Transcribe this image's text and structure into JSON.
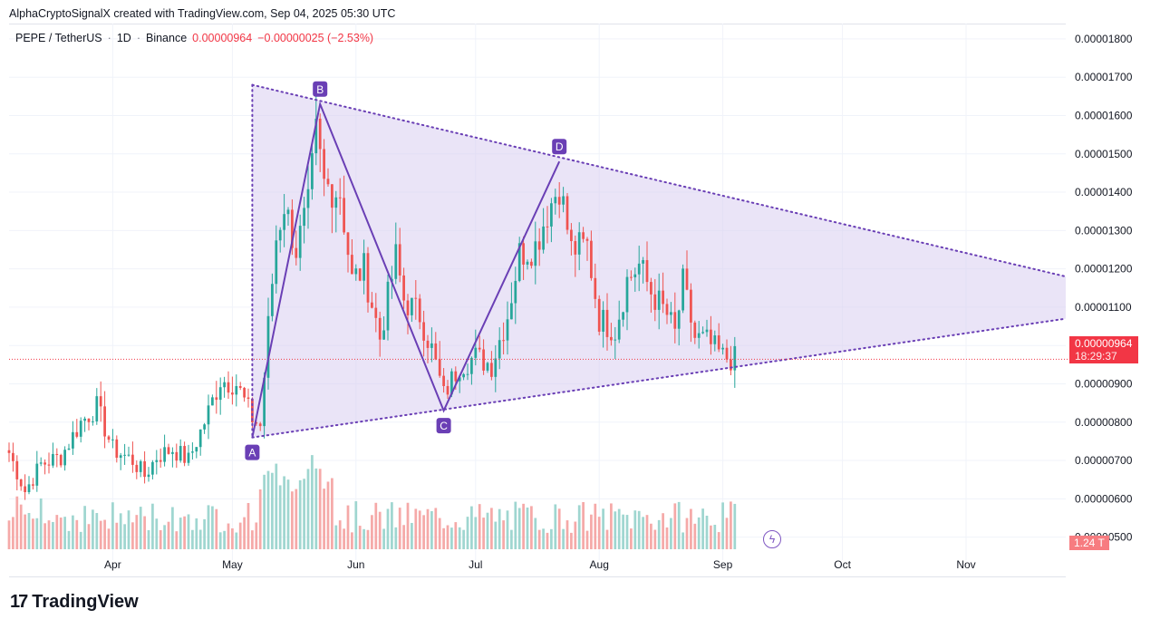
{
  "credit": "AlphaCryptoSignalX created with TradingView.com, Sep 04, 2025 05:30 UTC",
  "legend": {
    "symbol": "PEPE / TetherUS",
    "interval": "1D",
    "exchange": "Binance",
    "price": "0.00000964",
    "change": "−0.00000025 (−2.53%)"
  },
  "current_price": {
    "price": "0.00000964",
    "countdown": "18:29:37"
  },
  "volume_label": "1.24 T",
  "branding": {
    "mark": "17",
    "name": "TradingView"
  },
  "colors": {
    "up": "#26a69a",
    "down": "#ef5350",
    "pattern": "#6a3fb5",
    "fill": "#d9cdf0",
    "accent": "#f23645"
  },
  "chart_data": {
    "type": "candlestick",
    "y_axis_ticks": [
      "0.00001800",
      "0.00001700",
      "0.00001600",
      "0.00001500",
      "0.00001400",
      "0.00001300",
      "0.00001200",
      "0.00001100",
      "0.00001000",
      "0.00000900",
      "0.00000800",
      "0.00000700",
      "0.00000600",
      "0.00000500"
    ],
    "ylim": [
      4.4e-06,
      1.84e-05
    ],
    "x_axis_ticks": [
      "Apr",
      "May",
      "Jun",
      "Jul",
      "Aug",
      "Sep",
      "Oct",
      "Nov"
    ],
    "x_tick_dates": [
      "2025-04-01",
      "2025-05-01",
      "2025-06-01",
      "2025-07-01",
      "2025-08-01",
      "2025-09-01",
      "2025-10-01",
      "2025-11-01"
    ],
    "date_range": [
      "2025-03-06",
      "2025-11-26"
    ],
    "price_path": [
      [
        "2025-03-06",
        7.2e-06
      ],
      [
        "2025-03-10",
        6.2e-06
      ],
      [
        "2025-03-14",
        6.9e-06
      ],
      [
        "2025-03-19",
        7.1e-06
      ],
      [
        "2025-03-24",
        8e-06
      ],
      [
        "2025-03-28",
        8.4e-06
      ],
      [
        "2025-04-01",
        7.3e-06
      ],
      [
        "2025-04-06",
        7e-06
      ],
      [
        "2025-04-09",
        6.6e-06
      ],
      [
        "2025-04-12",
        7.1e-06
      ],
      [
        "2025-04-16",
        7.3e-06
      ],
      [
        "2025-04-20",
        7e-06
      ],
      [
        "2025-04-24",
        8e-06
      ],
      [
        "2025-04-28",
        9.1e-06
      ],
      [
        "2025-05-02",
        9e-06
      ],
      [
        "2025-05-06",
        8.1e-06
      ],
      [
        "2025-05-08",
        7.9e-06
      ],
      [
        "2025-05-10",
        1.05e-05
      ],
      [
        "2025-05-12",
        1.28e-05
      ],
      [
        "2025-05-14",
        1.37e-05
      ],
      [
        "2025-05-17",
        1.25e-05
      ],
      [
        "2025-05-20",
        1.36e-05
      ],
      [
        "2025-05-22",
        1.55e-05
      ],
      [
        "2025-05-24",
        1.42e-05
      ],
      [
        "2025-05-28",
        1.4e-05
      ],
      [
        "2025-05-31",
        1.17e-05
      ],
      [
        "2025-06-03",
        1.2e-05
      ],
      [
        "2025-06-07",
        1.02e-05
      ],
      [
        "2025-06-11",
        1.23e-05
      ],
      [
        "2025-06-13",
        1.12e-05
      ],
      [
        "2025-06-17",
        1.08e-05
      ],
      [
        "2025-06-20",
        9.9e-06
      ],
      [
        "2025-06-23",
        8.7e-06
      ],
      [
        "2025-06-27",
        9.5e-06
      ],
      [
        "2025-07-01",
        9.7e-06
      ],
      [
        "2025-07-05",
        9.5e-06
      ],
      [
        "2025-07-09",
        1.08e-05
      ],
      [
        "2025-07-12",
        1.24e-05
      ],
      [
        "2025-07-16",
        1.26e-05
      ],
      [
        "2025-07-19",
        1.35e-05
      ],
      [
        "2025-07-22",
        1.42e-05
      ],
      [
        "2025-07-25",
        1.25e-05
      ],
      [
        "2025-07-29",
        1.26e-05
      ],
      [
        "2025-08-01",
        1.07e-05
      ],
      [
        "2025-08-05",
        1.04e-05
      ],
      [
        "2025-08-08",
        1.17e-05
      ],
      [
        "2025-08-11",
        1.21e-05
      ],
      [
        "2025-08-14",
        1.14e-05
      ],
      [
        "2025-08-18",
        1.08e-05
      ],
      [
        "2025-08-20",
        1.03e-05
      ],
      [
        "2025-08-22",
        1.16e-05
      ],
      [
        "2025-08-25",
        1.02e-05
      ],
      [
        "2025-08-28",
        1.01e-05
      ],
      [
        "2025-09-01",
        9.7e-06
      ],
      [
        "2025-09-04",
        9.64e-06
      ]
    ],
    "pattern_points": [
      {
        "label": "A",
        "date": "2025-05-06",
        "price": 7.6e-06
      },
      {
        "label": "B",
        "date": "2025-05-23",
        "price": 1.63e-05
      },
      {
        "label": "C",
        "date": "2025-06-23",
        "price": 8.3e-06
      },
      {
        "label": "D",
        "date": "2025-07-22",
        "price": 1.48e-05
      }
    ],
    "triangle": {
      "upper": [
        [
          "2025-05-06",
          1.68e-05
        ],
        [
          "2025-11-26",
          1.18e-05
        ]
      ],
      "lower": [
        [
          "2025-05-06",
          7.6e-06
        ],
        [
          "2025-11-26",
          1.07e-05
        ]
      ]
    },
    "current_price_line": 9.64e-06,
    "legend_placement": "top-left"
  }
}
